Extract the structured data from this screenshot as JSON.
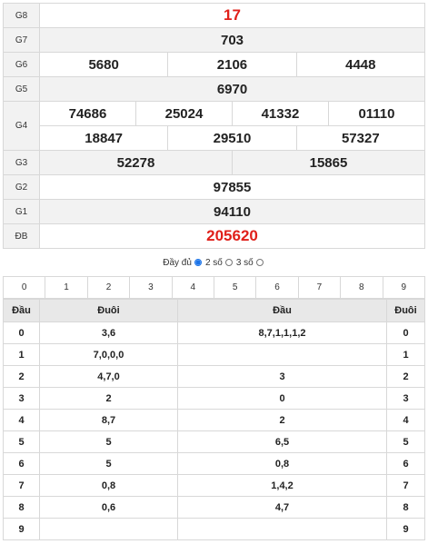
{
  "results": {
    "g8": {
      "label": "G8",
      "value": "17"
    },
    "g7": {
      "label": "G7",
      "value": "703"
    },
    "g6": {
      "label": "G6",
      "values": [
        "5680",
        "2106",
        "4448"
      ]
    },
    "g5": {
      "label": "G5",
      "value": "6970"
    },
    "g4": {
      "label": "G4",
      "row1": [
        "74686",
        "25024",
        "41332",
        "01110"
      ],
      "row2": [
        "18847",
        "29510",
        "57327"
      ]
    },
    "g3": {
      "label": "G3",
      "values": [
        "52278",
        "15865"
      ]
    },
    "g2": {
      "label": "G2",
      "value": "97855"
    },
    "g1": {
      "label": "G1",
      "value": "94110"
    },
    "db": {
      "label": "ĐB",
      "value": "205620"
    }
  },
  "filter": {
    "full": "Đầy đủ",
    "two": "2 số",
    "three": "3 số",
    "selected": "two"
  },
  "digits": [
    "0",
    "1",
    "2",
    "3",
    "4",
    "5",
    "6",
    "7",
    "8",
    "9"
  ],
  "headtail": {
    "headers": {
      "dau": "Đầu",
      "duoi": "Đuôi",
      "dau2": "Đầu",
      "duoi2": "Đuôi"
    },
    "rows": [
      {
        "k": "0",
        "tail": "3,6",
        "head": "8,7,1,1,1,2",
        "k2": "0"
      },
      {
        "k": "1",
        "tail": "7,0,0,0",
        "head": "",
        "k2": "1"
      },
      {
        "k": "2",
        "tail": "4,7,0",
        "head": "3",
        "k2": "2"
      },
      {
        "k": "3",
        "tail": "2",
        "head": "0",
        "k2": "3"
      },
      {
        "k": "4",
        "tail": "8,7",
        "head": "2",
        "k2": "4"
      },
      {
        "k": "5",
        "tail": "5",
        "head": "6,5",
        "k2": "5"
      },
      {
        "k": "6",
        "tail": "5",
        "head": "0,8",
        "k2": "6"
      },
      {
        "k": "7",
        "tail": "0,8",
        "head": "1,4,2",
        "k2": "7"
      },
      {
        "k": "8",
        "tail": "0,6",
        "head": "4,7",
        "k2": "8"
      },
      {
        "k": "9",
        "tail": "",
        "head": "",
        "k2": "9"
      }
    ]
  },
  "colors": {
    "accent_red": "#e0201a",
    "radio_blue": "#1a73e8"
  }
}
